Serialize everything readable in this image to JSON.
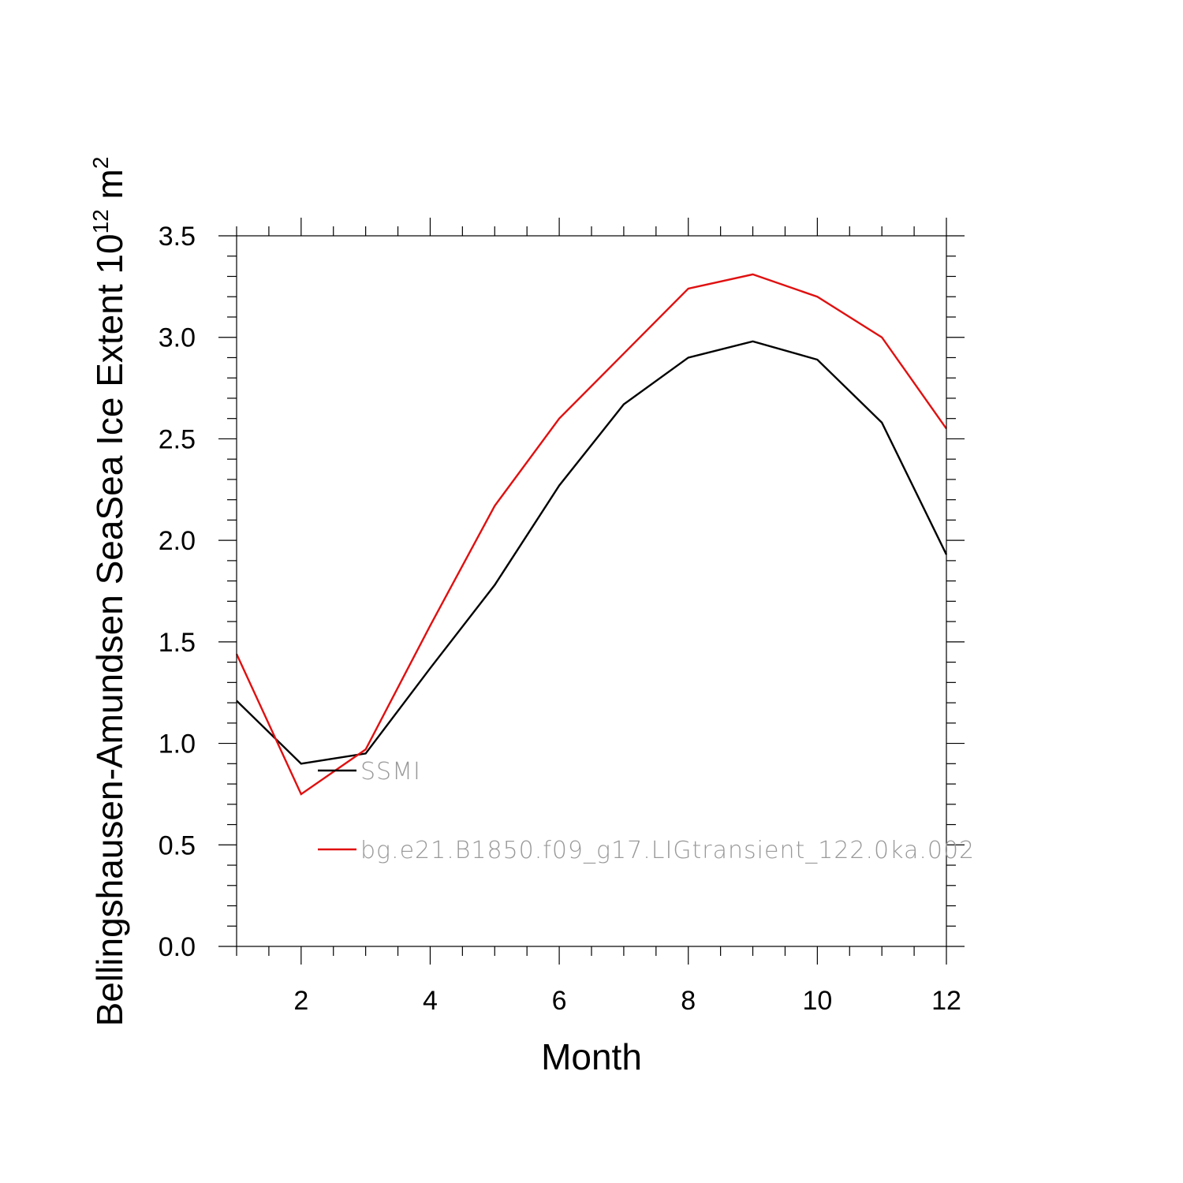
{
  "chart_data": {
    "type": "line",
    "title": "",
    "xlabel": "Month",
    "ylabel": "Bellingshausen-Amundsen SeaSea Ice Extent",
    "ylabel_unit_base": "10",
    "ylabel_unit_exp": "12",
    "ylabel_unit_tail": " m",
    "ylabel_unit_tail_exp": "2",
    "xlim": [
      1,
      12
    ],
    "ylim": [
      0,
      3.5
    ],
    "x_ticks": [
      2,
      4,
      6,
      8,
      10,
      12
    ],
    "x_tick_labels": [
      "2",
      "4",
      "6",
      "8",
      "10",
      "12"
    ],
    "y_ticks": [
      0,
      0.5,
      1.0,
      1.5,
      2.0,
      2.5,
      3.0,
      3.5
    ],
    "y_tick_labels": [
      "0.0",
      "0.5",
      "1.0",
      "1.5",
      "2.0",
      "2.5",
      "3.0",
      "3.5"
    ],
    "grid": false,
    "legend_position": "inside-lower-left",
    "x": [
      1,
      2,
      3,
      4,
      5,
      6,
      7,
      8,
      9,
      10,
      11,
      12
    ],
    "series": [
      {
        "name": "SSMI",
        "color": "#000000",
        "values": [
          1.21,
          0.9,
          0.95,
          1.37,
          1.78,
          2.27,
          2.67,
          2.9,
          2.98,
          2.89,
          2.58,
          1.93
        ]
      },
      {
        "name": "bg.e21.B1850.f09_g17.LIGtransient_122.0ka.002",
        "color": "#e01010",
        "values": [
          1.44,
          0.75,
          0.97,
          1.58,
          2.17,
          2.6,
          2.92,
          3.24,
          3.31,
          3.2,
          3.0,
          2.55
        ]
      }
    ]
  }
}
